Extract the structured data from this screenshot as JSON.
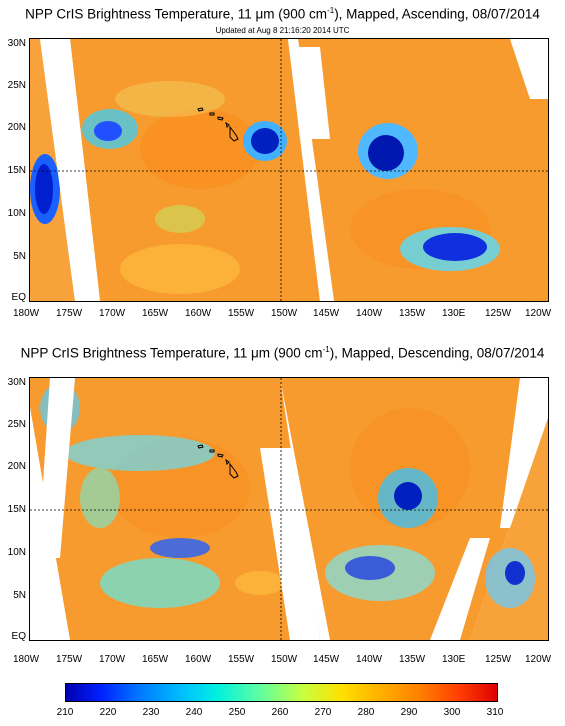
{
  "top_panel": {
    "title_pre": "NPP CrIS Brightness Temperature, 11 ",
    "title_unit": "μm",
    "title_mid": " (900 cm",
    "title_sup": "-1",
    "title_post": "), Mapped, Ascending, 08/07/2014",
    "subtitle": "Updated at Aug  8 21:16:20 2014 UTC"
  },
  "bottom_panel": {
    "title_pre": "NPP CrIS Brightness Temperature, 11 ",
    "title_unit": "μm",
    "title_mid": " (900 cm",
    "title_sup": "-1",
    "title_post": "), Mapped, Descending, 08/07/2014"
  },
  "lat_labels": [
    "30N",
    "25N",
    "20N",
    "15N",
    "10N",
    "5N",
    "EQ"
  ],
  "lon_labels": [
    "180W",
    "175W",
    "170W",
    "165W",
    "160W",
    "155W",
    "150W",
    "145W",
    "140W",
    "135W",
    "130E",
    "125W",
    "120W"
  ],
  "colorbar": {
    "ticks": [
      "210",
      "220",
      "230",
      "240",
      "250",
      "260",
      "270",
      "280",
      "290",
      "300",
      "310"
    ],
    "colors": {
      "cold": "#0000b0",
      "cool": "#00c0ff",
      "mid": "#c8ff40",
      "warm": "#ff8000",
      "hot": "#e00000"
    }
  }
}
